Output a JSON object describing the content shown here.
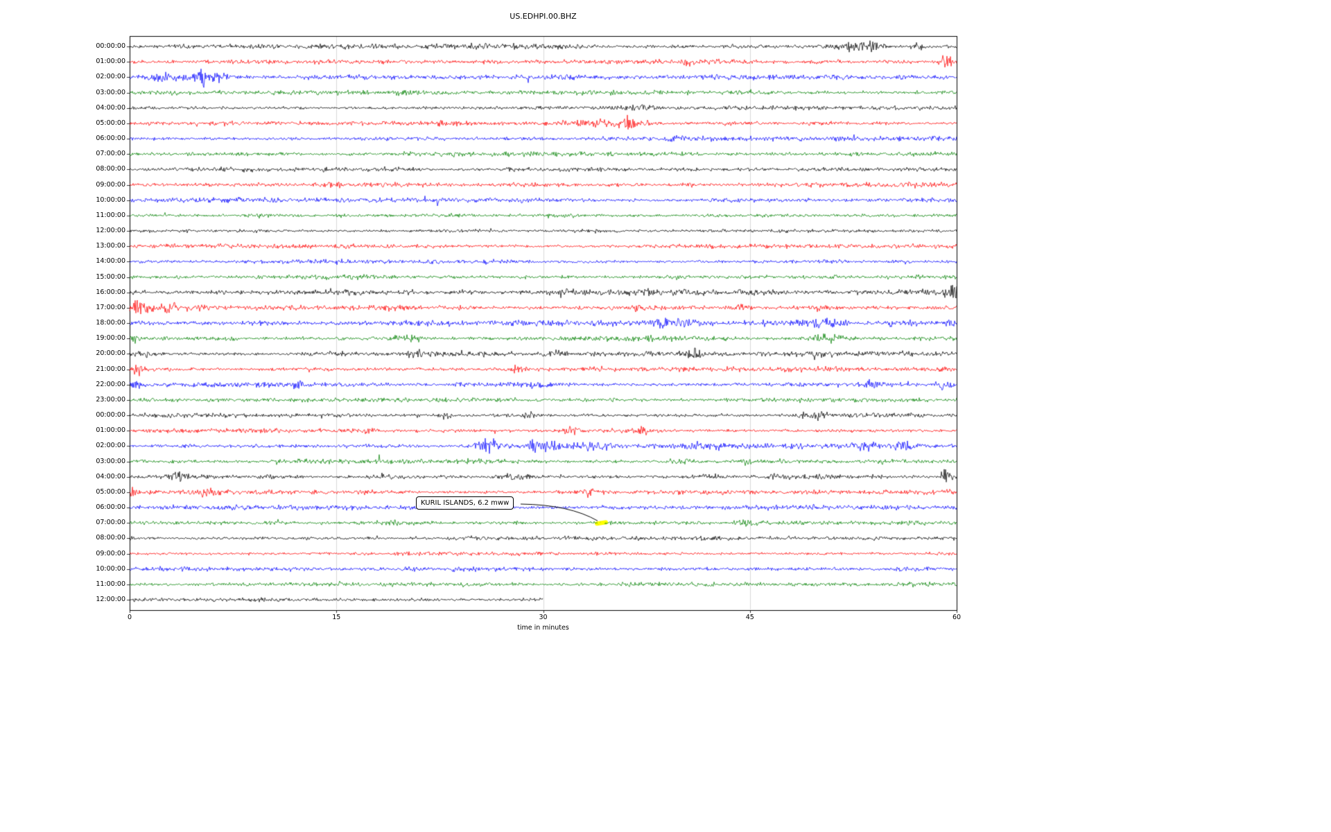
{
  "title": "US.EDHPI.00.BHZ",
  "chart_data": {
    "type": "line",
    "variant": "helicorder-dayplot-seismogram",
    "title": "US.EDHPI.00.BHZ",
    "xlabel": "time in minutes",
    "xlim": [
      0,
      60
    ],
    "x_ticks": [
      0,
      15,
      30,
      45,
      60
    ],
    "grid": true,
    "trace_color_cycle": [
      "#000000",
      "#ff0000",
      "#0000ff",
      "#008000"
    ],
    "rows": [
      {
        "label": "00:00:00",
        "color": "#000000",
        "noise": 2.1,
        "events": [
          {
            "min": 28,
            "amp": 2.2,
            "w": 0.3
          },
          {
            "min": 52.6,
            "amp": 3.5,
            "w": 0.7
          },
          {
            "min": 53.9,
            "amp": 4.5,
            "w": 0.35
          },
          {
            "min": 57.3,
            "amp": 3,
            "w": 0.3
          }
        ]
      },
      {
        "label": "01:00:00",
        "color": "#ff0000",
        "noise": 1.7,
        "events": [
          {
            "min": 40.4,
            "amp": 3,
            "w": 0.3
          },
          {
            "min": 59.3,
            "amp": 5.5,
            "w": 0.4
          }
        ]
      },
      {
        "label": "02:00:00",
        "color": "#0000ff",
        "noise": 1.8,
        "events": [
          {
            "min": 2,
            "amp": 2.2,
            "w": 1
          },
          {
            "min": 4.6,
            "amp": 3,
            "w": 1.4
          },
          {
            "min": 5.2,
            "amp": 8,
            "w": 0.25
          },
          {
            "min": 6.6,
            "amp": 3,
            "w": 0.8
          }
        ]
      },
      {
        "label": "03:00:00",
        "color": "#008000",
        "noise": 1.7,
        "events": [
          {
            "min": 20,
            "amp": 1.8,
            "w": 0.5
          }
        ]
      },
      {
        "label": "04:00:00",
        "color": "#000000",
        "noise": 1.5,
        "events": [
          {
            "min": 37,
            "amp": 1.8,
            "w": 0.5
          }
        ]
      },
      {
        "label": "05:00:00",
        "color": "#ff0000",
        "noise": 1.7,
        "events": [
          {
            "min": 33.8,
            "amp": 2.2,
            "w": 1.2
          },
          {
            "min": 36.1,
            "amp": 8,
            "w": 0.3
          },
          {
            "min": 36.9,
            "amp": 3,
            "w": 0.5
          }
        ]
      },
      {
        "label": "06:00:00",
        "color": "#0000ff",
        "noise": 1.7,
        "events": []
      },
      {
        "label": "07:00:00",
        "color": "#008000",
        "noise": 1.7,
        "events": []
      },
      {
        "label": "08:00:00",
        "color": "#000000",
        "noise": 1.5,
        "events": []
      },
      {
        "label": "09:00:00",
        "color": "#ff0000",
        "noise": 1.7,
        "events": [
          {
            "min": 15,
            "amp": 1.5,
            "w": 0.6
          },
          {
            "min": 40.5,
            "amp": 1.8,
            "w": 0.5
          }
        ]
      },
      {
        "label": "10:00:00",
        "color": "#0000ff",
        "noise": 1.7,
        "events": []
      },
      {
        "label": "11:00:00",
        "color": "#008000",
        "noise": 1.6,
        "events": []
      },
      {
        "label": "12:00:00",
        "color": "#000000",
        "noise": 1.5,
        "events": []
      },
      {
        "label": "13:00:00",
        "color": "#ff0000",
        "noise": 1.6,
        "events": []
      },
      {
        "label": "14:00:00",
        "color": "#0000ff",
        "noise": 1.6,
        "events": []
      },
      {
        "label": "15:00:00",
        "color": "#008000",
        "noise": 1.7,
        "events": [
          {
            "min": 39.5,
            "amp": 1.5,
            "w": 0.6
          }
        ]
      },
      {
        "label": "16:00:00",
        "color": "#000000",
        "noise": 2.1,
        "events": [
          {
            "min": 32,
            "amp": 2.2,
            "w": 0.5
          },
          {
            "min": 59.7,
            "amp": 7,
            "w": 0.3
          }
        ]
      },
      {
        "label": "17:00:00",
        "color": "#ff0000",
        "noise": 2.1,
        "events": [
          {
            "min": 0.4,
            "amp": 7,
            "w": 0.3
          },
          {
            "min": 1.6,
            "amp": 3.5,
            "w": 0.6
          },
          {
            "min": 2.9,
            "amp": 3.5,
            "w": 0.4
          },
          {
            "min": 37,
            "amp": 2.2,
            "w": 0.4
          },
          {
            "min": 44.3,
            "amp": 3.5,
            "w": 0.25
          },
          {
            "min": 50,
            "amp": 2.2,
            "w": 0.4
          }
        ]
      },
      {
        "label": "18:00:00",
        "color": "#0000ff",
        "noise": 2.1,
        "events": [
          {
            "min": 39.6,
            "amp": 2.8,
            "w": 1
          },
          {
            "min": 50.6,
            "amp": 2.8,
            "w": 1
          },
          {
            "min": 56,
            "amp": 2.2,
            "w": 0.8
          },
          {
            "min": 59.5,
            "amp": 3,
            "w": 0.3
          }
        ]
      },
      {
        "label": "19:00:00",
        "color": "#008000",
        "noise": 1.9,
        "events": [
          {
            "min": 0.3,
            "amp": 3,
            "w": 0.5
          },
          {
            "min": 20,
            "amp": 2.2,
            "w": 0.8
          },
          {
            "min": 50.6,
            "amp": 2.6,
            "w": 0.8
          }
        ]
      },
      {
        "label": "20:00:00",
        "color": "#000000",
        "noise": 1.7,
        "events": [
          {
            "min": 0.8,
            "amp": 3,
            "w": 0.7
          },
          {
            "min": 20.8,
            "amp": 3,
            "w": 0.7
          },
          {
            "min": 30.8,
            "amp": 2.6,
            "w": 0.6
          },
          {
            "min": 41,
            "amp": 2.6,
            "w": 0.5
          },
          {
            "min": 50.3,
            "amp": 2.2,
            "w": 0.5
          }
        ]
      },
      {
        "label": "21:00:00",
        "color": "#ff0000",
        "noise": 1.7,
        "events": [
          {
            "min": 0.8,
            "amp": 3.5,
            "w": 0.5
          },
          {
            "min": 28,
            "amp": 2.6,
            "w": 0.4
          }
        ]
      },
      {
        "label": "22:00:00",
        "color": "#0000ff",
        "noise": 1.8,
        "events": [
          {
            "min": 0.5,
            "amp": 3,
            "w": 0.4
          },
          {
            "min": 12.2,
            "amp": 3.5,
            "w": 0.3
          },
          {
            "min": 29.5,
            "amp": 2.2,
            "w": 0.4
          },
          {
            "min": 54,
            "amp": 3,
            "w": 0.8
          },
          {
            "min": 59,
            "amp": 3,
            "w": 0.3
          }
        ]
      },
      {
        "label": "23:00:00",
        "color": "#008000",
        "noise": 1.6,
        "events": []
      },
      {
        "label": "00:00:00",
        "color": "#000000",
        "noise": 1.7,
        "events": [
          {
            "min": 23,
            "amp": 2.2,
            "w": 0.4
          },
          {
            "min": 29,
            "amp": 3,
            "w": 0.3
          },
          {
            "min": 49.5,
            "amp": 3,
            "w": 0.8
          }
        ]
      },
      {
        "label": "01:00:00",
        "color": "#ff0000",
        "noise": 1.7,
        "events": [
          {
            "min": 17,
            "amp": 2.2,
            "w": 0.5
          },
          {
            "min": 32,
            "amp": 3,
            "w": 0.5
          },
          {
            "min": 37,
            "amp": 3.5,
            "w": 0.6
          }
        ]
      },
      {
        "label": "02:00:00",
        "color": "#0000ff",
        "noise": 1.9,
        "events": [
          {
            "min": 25.8,
            "amp": 7.5,
            "w": 0.25
          },
          {
            "min": 26.4,
            "amp": 3.5,
            "w": 0.5
          },
          {
            "min": 29.2,
            "amp": 6.5,
            "w": 0.3
          },
          {
            "min": 30.6,
            "amp": 3.5,
            "w": 0.6
          },
          {
            "min": 33.5,
            "amp": 3,
            "w": 0.8
          },
          {
            "min": 41.5,
            "amp": 3.5,
            "w": 1
          },
          {
            "min": 53,
            "amp": 3,
            "w": 0.6
          },
          {
            "min": 56,
            "amp": 2.2,
            "w": 0.5
          }
        ]
      },
      {
        "label": "03:00:00",
        "color": "#008000",
        "noise": 1.7,
        "events": [
          {
            "min": 40,
            "amp": 2.2,
            "w": 0.6
          },
          {
            "min": 44.8,
            "amp": 1.8,
            "w": 0.4
          }
        ]
      },
      {
        "label": "04:00:00",
        "color": "#000000",
        "noise": 1.7,
        "events": [
          {
            "min": 3.5,
            "amp": 3,
            "w": 0.8
          },
          {
            "min": 10,
            "amp": 1.8,
            "w": 0.5
          },
          {
            "min": 28,
            "amp": 2.2,
            "w": 0.6
          },
          {
            "min": 42,
            "amp": 3,
            "w": 0.5
          },
          {
            "min": 46.5,
            "amp": 2.2,
            "w": 0.4
          },
          {
            "min": 59.2,
            "amp": 7,
            "w": 0.25
          }
        ]
      },
      {
        "label": "05:00:00",
        "color": "#ff0000",
        "noise": 1.7,
        "events": [
          {
            "min": 0.2,
            "amp": 5,
            "w": 0.25
          },
          {
            "min": 5.5,
            "amp": 2.6,
            "w": 0.5
          },
          {
            "min": 33.5,
            "amp": 3.5,
            "w": 0.4
          }
        ]
      },
      {
        "label": "06:00:00",
        "color": "#0000ff",
        "noise": 1.7,
        "events": []
      },
      {
        "label": "07:00:00",
        "color": "#008000",
        "noise": 1.7,
        "events": [
          {
            "min": 45,
            "amp": 2.2,
            "w": 0.5
          }
        ]
      },
      {
        "label": "08:00:00",
        "color": "#000000",
        "noise": 1.5,
        "events": []
      },
      {
        "label": "09:00:00",
        "color": "#ff0000",
        "noise": 1.6,
        "events": []
      },
      {
        "label": "10:00:00",
        "color": "#0000ff",
        "noise": 1.7,
        "events": []
      },
      {
        "label": "11:00:00",
        "color": "#008000",
        "noise": 1.6,
        "events": []
      },
      {
        "label": "12:00:00",
        "color": "#000000",
        "noise": 1.6,
        "events": [],
        "end_min": 30
      }
    ],
    "annotation": {
      "text": "KURIL ISLANDS, 6.2 mww",
      "target_row_index": 31,
      "target_row_label": "07:00:00",
      "target_minute": 34.2,
      "marker_color": "#ffff00"
    }
  }
}
